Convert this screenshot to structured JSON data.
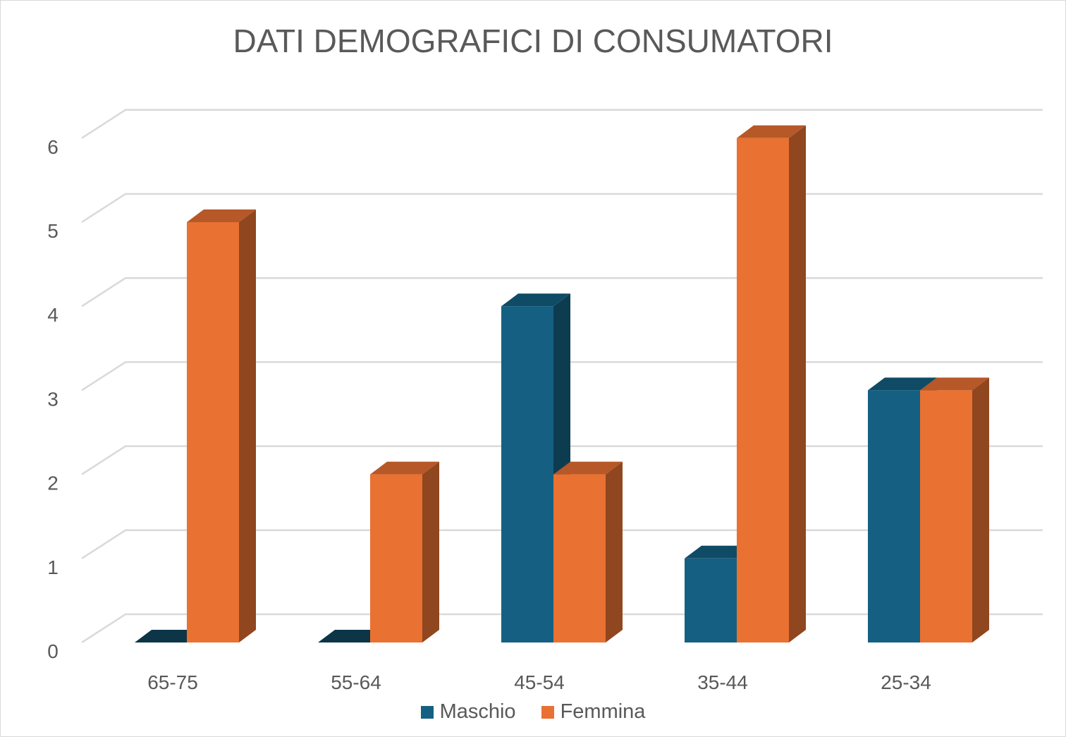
{
  "chart_data": {
    "type": "bar",
    "variant": "3d-clustered-column",
    "title": "DATI DEMOGRAFICI DI CONSUMATORI",
    "xlabel": "",
    "ylabel": "",
    "categories": [
      "65-75",
      "55-64",
      "45-54",
      "35-44",
      "25-34"
    ],
    "series": [
      {
        "name": "Maschio",
        "values": [
          0,
          0,
          4,
          1,
          3
        ],
        "color": "#156082"
      },
      {
        "name": "Femmina",
        "values": [
          5,
          2,
          2,
          6,
          3
        ],
        "color": "#E97132"
      }
    ],
    "ylim": [
      0,
      6
    ],
    "yticks": [
      "0",
      "1",
      "2",
      "3",
      "4",
      "5",
      "6"
    ],
    "grid": true,
    "legend": "bottom"
  }
}
